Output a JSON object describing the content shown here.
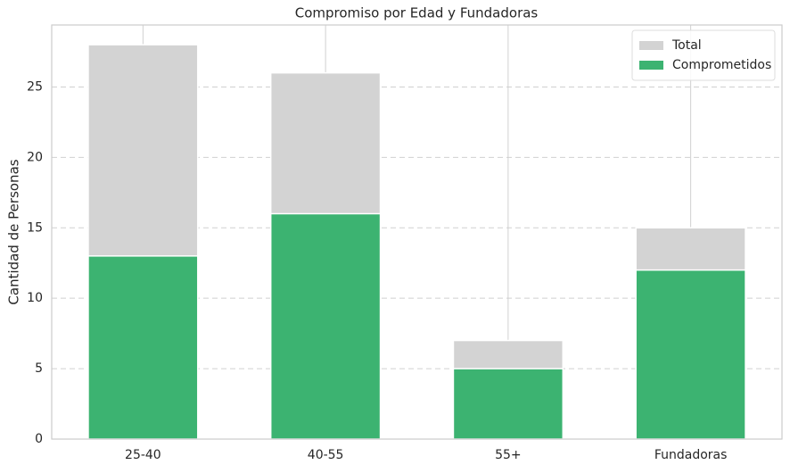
{
  "chart_data": {
    "type": "bar",
    "overlay": true,
    "title": "Compromiso por Edad y Fundadoras",
    "y_label": "Cantidad de Personas",
    "categories": [
      "25-40",
      "40-55",
      "55+",
      "Fundadoras"
    ],
    "series": [
      {
        "name": "Total",
        "color": "#d3d3d3",
        "values": [
          28,
          26,
          7,
          15
        ]
      },
      {
        "name": "Comprometidos",
        "color": "#3cb371",
        "values": [
          13,
          16,
          5,
          12
        ]
      }
    ],
    "ylim": [
      0,
      29.4
    ],
    "yticks": [
      0,
      5,
      10,
      15,
      20,
      25
    ],
    "grid": true,
    "legend": "upper right"
  }
}
